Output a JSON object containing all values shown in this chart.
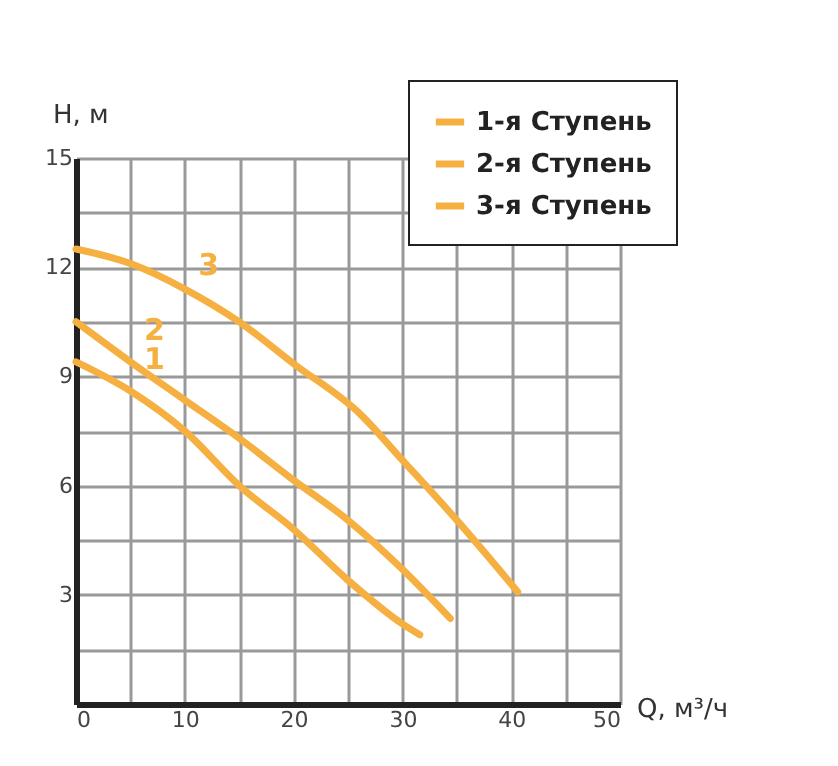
{
  "chart_data": {
    "type": "line",
    "xlabel": "Q, м³/ч",
    "ylabel": "H, м",
    "xlim": [
      0,
      50
    ],
    "ylim": [
      0,
      15
    ],
    "xticks": [
      0,
      {
        "value": 5,
        "label": null
      },
      10,
      {
        "value": 15,
        "label": null
      },
      20,
      {
        "value": 25,
        "label": null
      },
      30,
      {
        "value": 35,
        "label": null
      },
      40,
      {
        "value": 45,
        "label": null
      },
      50
    ],
    "yticks": [
      {
        "value": 1.5,
        "label": null
      },
      3,
      {
        "value": 4.5,
        "label": null
      },
      6,
      {
        "value": 7.5,
        "label": null
      },
      9,
      {
        "value": 10.5,
        "label": null
      },
      12,
      {
        "value": 13.5,
        "label": null
      },
      15
    ],
    "grid": true,
    "legend": "top right",
    "marker": "none",
    "line_style": "solid",
    "series": [
      {
        "name": "1-я Ступень",
        "color": "#f5b041",
        "x": [
          0,
          5,
          10,
          15,
          20,
          25,
          30,
          31.6
        ],
        "values": [
          9.4,
          8.6,
          7.5,
          6.0,
          4.8,
          3.4,
          2.2,
          1.9
        ]
      },
      {
        "name": "2-я Ступень",
        "color": "#f5b041",
        "x": [
          0,
          5,
          10,
          15,
          20,
          25,
          30,
          34.4
        ],
        "values": [
          10.5,
          9.4,
          8.35,
          7.3,
          6.15,
          5.05,
          3.7,
          2.35
        ]
      },
      {
        "name": "3-я Ступень",
        "color": "#f5b041",
        "x": [
          0,
          5,
          10,
          15,
          20,
          26.1,
          30,
          35,
          40.6
        ],
        "values": [
          12.5,
          12.1,
          11.4,
          10.5,
          9.35,
          7.97,
          6.7,
          5.05,
          3.08
        ]
      }
    ],
    "annotations": [
      "1",
      "2",
      "3"
    ]
  }
}
